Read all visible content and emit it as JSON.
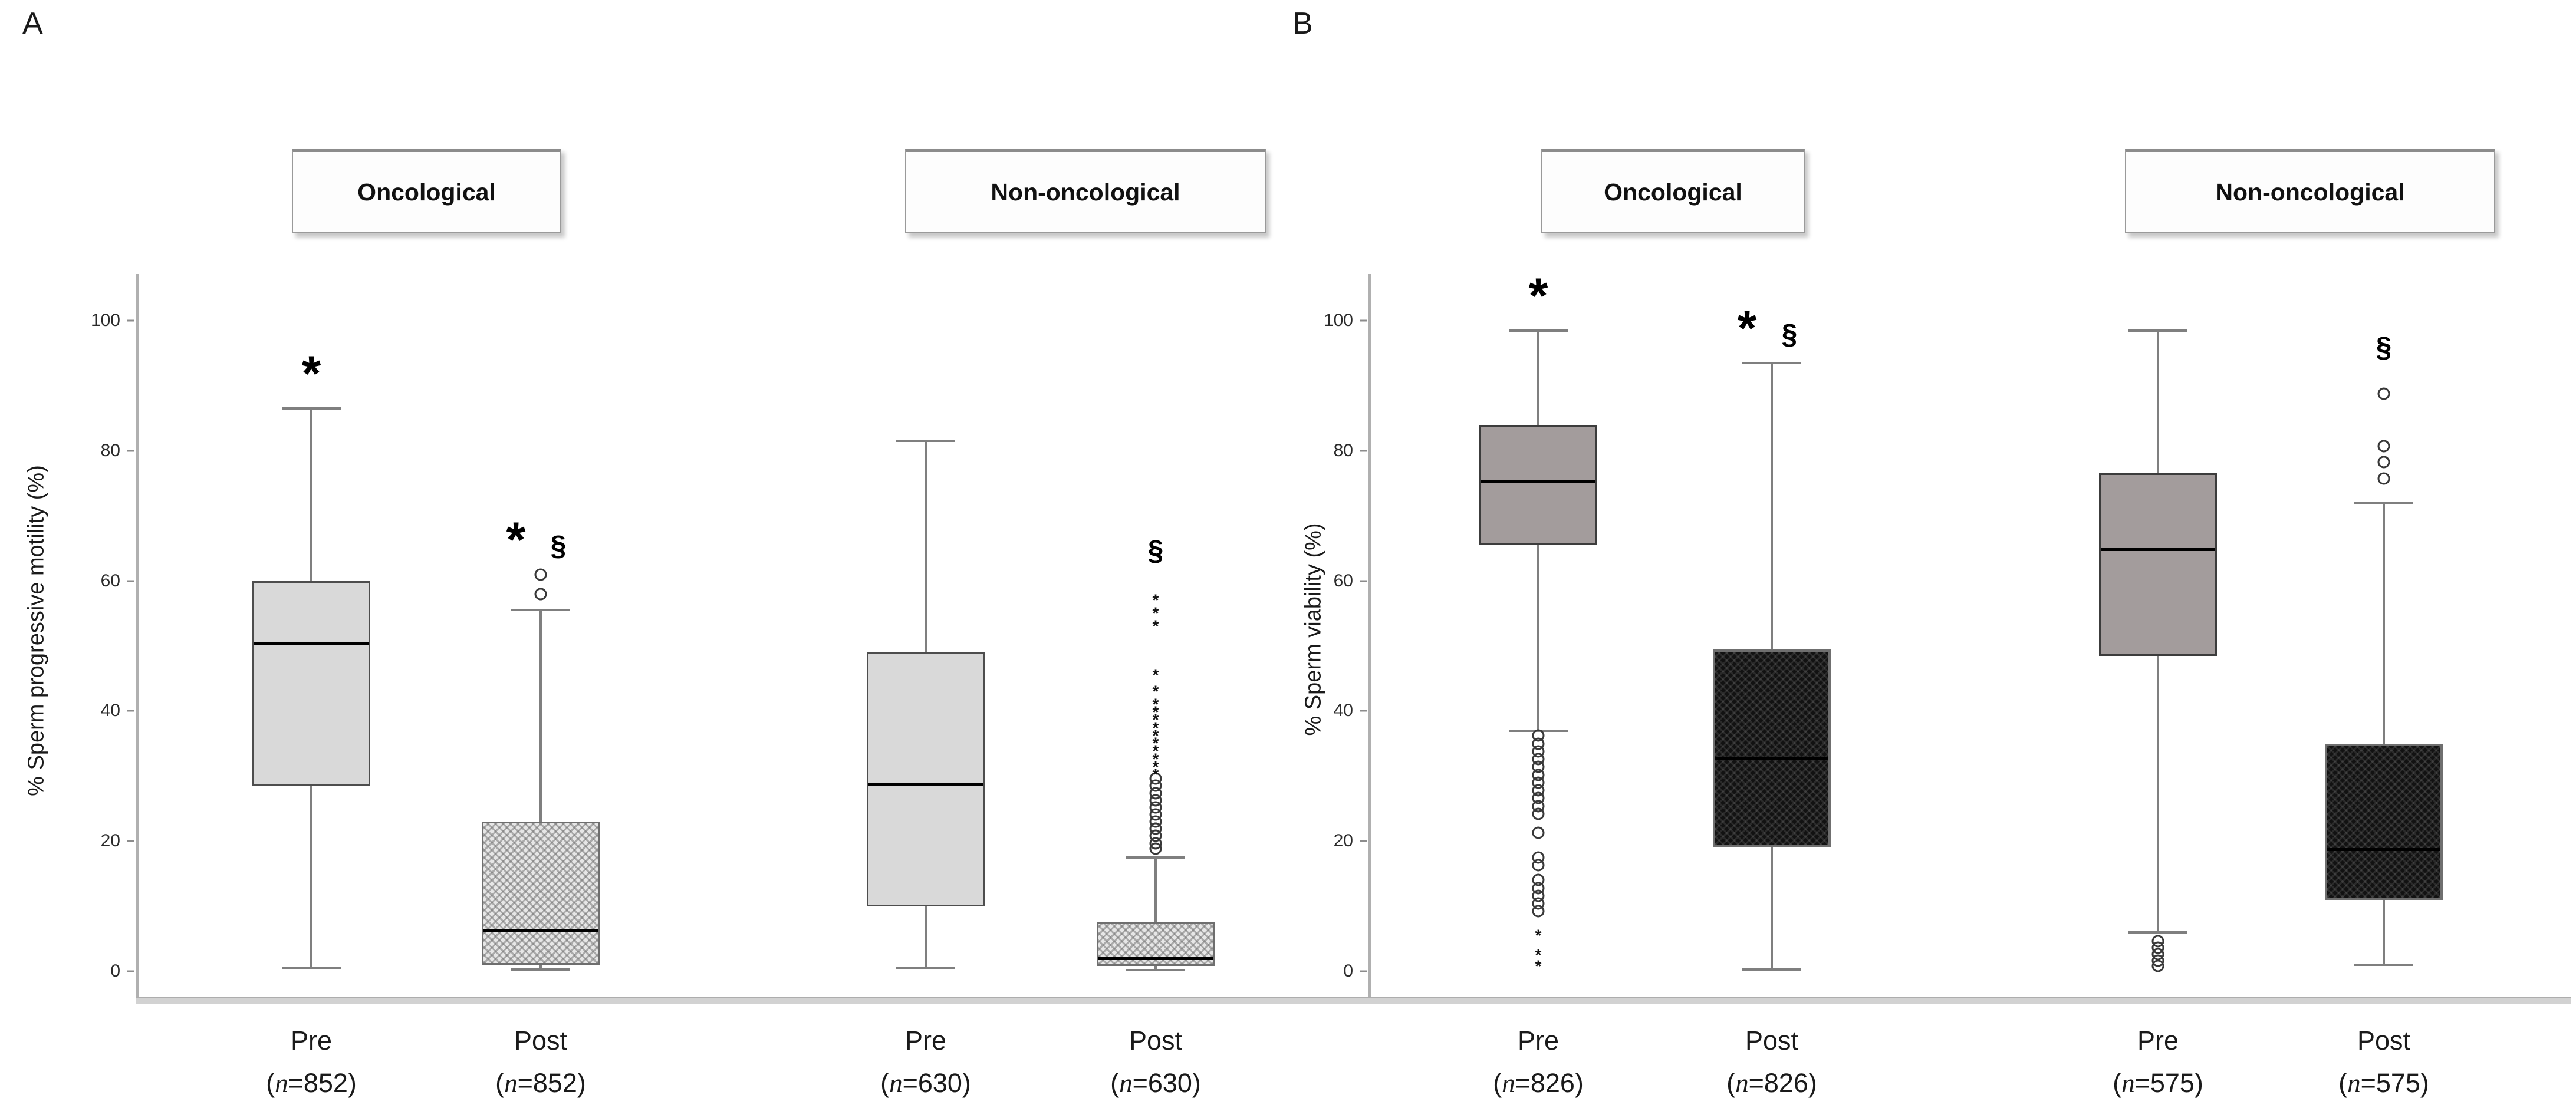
{
  "figure_labels": {
    "panel_a": "A",
    "panel_b": "B"
  },
  "colors": {
    "background": "#ffffff",
    "box_light_fill": "#d9d9d9",
    "box_gray_fill": "#a39c9c",
    "box_dark_fill": "#121212",
    "box_border": "#4d4d4d",
    "median": "#000000",
    "whisker": "#7f7f7f",
    "axis_line": "#b0b0b0",
    "baseline": "#d2d2d2",
    "text": "#1a1a1a"
  },
  "chart_data": [
    {
      "type": "boxplot",
      "panel_label": "A",
      "ylabel": "% Sperm progressive motility (%)",
      "ylim": [
        0,
        100
      ],
      "yticks": [
        0,
        20,
        40,
        60,
        80,
        100
      ],
      "grid": false,
      "legend": "none",
      "group_headers": [
        "Oncological",
        "Non-oncological"
      ],
      "groups": [
        {
          "group": "Oncological",
          "label": "Pre",
          "n": "852",
          "n_label_parts": [
            "(",
            "n",
            "=852)"
          ],
          "whisker_low": 0.5,
          "q1": 28.5,
          "median": 50.5,
          "q3": 60,
          "whisker_high": 86.5,
          "outliers_circle": [],
          "outliers_star": [],
          "sig": [
            "*"
          ],
          "style": "plain-light"
        },
        {
          "group": "Oncological",
          "label": "Post",
          "n": "852",
          "n_label_parts": [
            "(",
            "n",
            "=852)"
          ],
          "whisker_low": 0.3,
          "q1": 1,
          "median": 6.5,
          "q3": 23,
          "whisker_high": 55.5,
          "outliers_circle": [
            61,
            58
          ],
          "outliers_star": [],
          "sig": [
            "*",
            "§"
          ],
          "style": "hatch-light"
        },
        {
          "group": "Non-oncological",
          "label": "Pre",
          "n": "630",
          "n_label_parts": [
            "(",
            "n",
            "=630)"
          ],
          "whisker_low": 0.5,
          "q1": 10,
          "median": 29,
          "q3": 49,
          "whisker_high": 81.5,
          "outliers_circle": [],
          "outliers_star": [],
          "sig": [],
          "style": "plain-light"
        },
        {
          "group": "Non-oncological",
          "label": "Post",
          "n": "630",
          "n_label_parts": [
            "(",
            "n",
            "=630)"
          ],
          "whisker_low": 0.2,
          "q1": 0.8,
          "median": 2.2,
          "q3": 7.5,
          "whisker_high": 17.5,
          "outliers_circle": [
            29.6,
            28.5,
            27.4,
            26.3,
            25.2,
            24.1,
            23,
            21.9,
            20.8,
            19.7,
            18.8
          ],
          "outliers_star": [
            57.5,
            55.5,
            53.5,
            46,
            43.5,
            41.5,
            40.3,
            39.1,
            37.9,
            36.7,
            35.5,
            34.3,
            33.1,
            31.9,
            30.7
          ],
          "sig": [
            "§"
          ],
          "style": "hatch-light"
        }
      ]
    },
    {
      "type": "boxplot",
      "panel_label": "B",
      "ylabel": "% Sperm viability (%)",
      "ylim": [
        0,
        100
      ],
      "yticks": [
        0,
        20,
        40,
        60,
        80,
        100
      ],
      "grid": false,
      "legend": "none",
      "group_headers": [
        "Oncological",
        "Non-oncological"
      ],
      "groups": [
        {
          "group": "Oncological",
          "label": "Pre",
          "n": "826",
          "n_label_parts": [
            "(",
            "n",
            "=826)"
          ],
          "whisker_low": 37,
          "q1": 65.5,
          "median": 75.5,
          "q3": 84,
          "whisker_high": 98.5,
          "outliers_circle": [
            36.2,
            35,
            33.8,
            32.6,
            31.4,
            30.2,
            29,
            27.8,
            26.6,
            25.4,
            24.2,
            21.3,
            17.5,
            16.3,
            14,
            12.8,
            11.6,
            10.4,
            9.2
          ],
          "outliers_star": [
            6,
            3,
            1.3
          ],
          "sig": [
            "*"
          ],
          "style": "plain-gray"
        },
        {
          "group": "Oncological",
          "label": "Post",
          "n": "826",
          "n_label_parts": [
            "(",
            "n",
            "=826)"
          ],
          "whisker_low": 0.3,
          "q1": 19,
          "median": 33,
          "q3": 49.5,
          "whisker_high": 93.5,
          "outliers_circle": [],
          "outliers_star": [],
          "sig": [
            "*",
            "§"
          ],
          "style": "hatch-dark"
        },
        {
          "group": "Non-oncological",
          "label": "Pre",
          "n": "575",
          "n_label_parts": [
            "(",
            "n",
            "=575)"
          ],
          "whisker_low": 6,
          "q1": 48.5,
          "median": 65,
          "q3": 76.5,
          "whisker_high": 98.5,
          "outliers_circle": [
            4.6,
            3.6,
            2.6,
            1.6,
            0.8
          ],
          "outliers_star": [],
          "sig": [],
          "style": "plain-gray"
        },
        {
          "group": "Non-oncological",
          "label": "Post",
          "n": "575",
          "n_label_parts": [
            "(",
            "n",
            "=575)"
          ],
          "whisker_low": 1,
          "q1": 11,
          "median": 19,
          "q3": 35,
          "whisker_high": 72,
          "outliers_circle": [
            88.8,
            80.7,
            78.3,
            75.7
          ],
          "outliers_star": [],
          "sig": [
            "§"
          ],
          "style": "hatch-dark"
        }
      ]
    }
  ]
}
